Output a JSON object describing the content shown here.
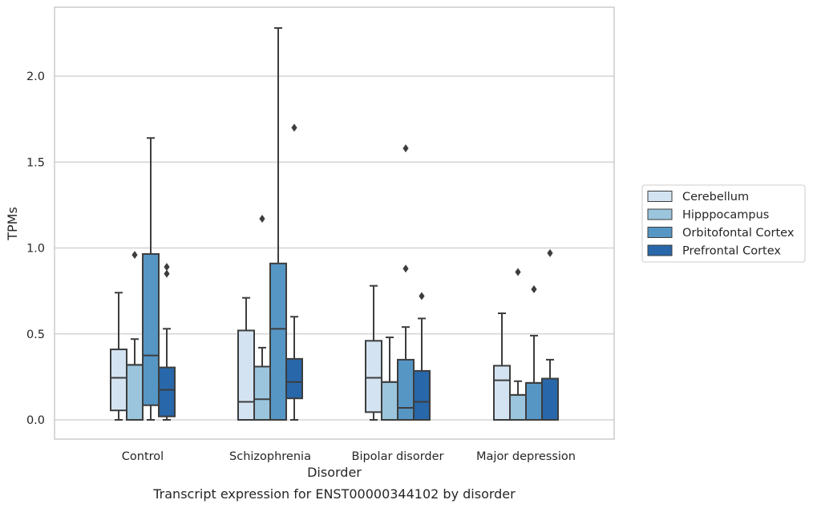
{
  "chart_data": {
    "type": "box",
    "title": "",
    "caption": "Transcript expression for ENST00000344102 by disorder",
    "xlabel": "Disorder",
    "ylabel": "TPMs",
    "ylim": [
      -0.11,
      2.41
    ],
    "yticks": [
      0.0,
      0.5,
      1.0,
      1.5,
      2.0
    ],
    "ytick_labels": [
      "0.0",
      "0.5",
      "1.0",
      "1.5",
      "2.0"
    ],
    "grid": "horizontal",
    "legend_position": "right",
    "categories": [
      "Control",
      "Schizophrenia",
      "Bipolar disorder",
      "Major depression"
    ],
    "series": [
      {
        "name": "Cerebellum",
        "color": "#d3e3f1",
        "boxes": [
          {
            "whisker_low": 0.0,
            "q1": 0.055,
            "median": 0.245,
            "q3": 0.41,
            "whisker_high": 0.74,
            "outliers": []
          },
          {
            "whisker_low": 0.0,
            "q1": 0.0,
            "median": 0.105,
            "q3": 0.52,
            "whisker_high": 0.71,
            "outliers": []
          },
          {
            "whisker_low": 0.0,
            "q1": 0.045,
            "median": 0.245,
            "q3": 0.46,
            "whisker_high": 0.78,
            "outliers": []
          },
          {
            "whisker_low": 0.0,
            "q1": 0.0,
            "median": 0.23,
            "q3": 0.315,
            "whisker_high": 0.62,
            "outliers": []
          }
        ]
      },
      {
        "name": "Hipppocampus",
        "color": "#9bc5dd",
        "boxes": [
          {
            "whisker_low": 0.0,
            "q1": 0.0,
            "median": 0.32,
            "q3": 0.32,
            "whisker_high": 0.47,
            "outliers": [
              0.96
            ]
          },
          {
            "whisker_low": 0.0,
            "q1": 0.0,
            "median": 0.12,
            "q3": 0.31,
            "whisker_high": 0.42,
            "outliers": [
              1.17
            ]
          },
          {
            "whisker_low": 0.0,
            "q1": 0.0,
            "median": 0.22,
            "q3": 0.22,
            "whisker_high": 0.48,
            "outliers": []
          },
          {
            "whisker_low": 0.0,
            "q1": 0.0,
            "median": 0.145,
            "q3": 0.145,
            "whisker_high": 0.225,
            "outliers": [
              0.86
            ]
          }
        ]
      },
      {
        "name": "Orbitofontal Cortex",
        "color": "#5696c5",
        "boxes": [
          {
            "whisker_low": 0.0,
            "q1": 0.085,
            "median": 0.375,
            "q3": 0.965,
            "whisker_high": 1.64,
            "outliers": []
          },
          {
            "whisker_low": 0.0,
            "q1": 0.0,
            "median": 0.53,
            "q3": 0.91,
            "whisker_high": 2.28,
            "outliers": []
          },
          {
            "whisker_low": 0.0,
            "q1": 0.0,
            "median": 0.07,
            "q3": 0.35,
            "whisker_high": 0.54,
            "outliers": [
              0.88,
              1.58
            ]
          },
          {
            "whisker_low": 0.0,
            "q1": 0.0,
            "median": 0.215,
            "q3": 0.215,
            "whisker_high": 0.49,
            "outliers": [
              0.76
            ]
          }
        ]
      },
      {
        "name": "Prefrontal Cortex",
        "color": "#2867a9",
        "boxes": [
          {
            "whisker_low": 0.0,
            "q1": 0.02,
            "median": 0.175,
            "q3": 0.305,
            "whisker_high": 0.53,
            "outliers": [
              0.85,
              0.89
            ]
          },
          {
            "whisker_low": 0.0,
            "q1": 0.125,
            "median": 0.22,
            "q3": 0.355,
            "whisker_high": 0.6,
            "outliers": [
              1.7
            ]
          },
          {
            "whisker_low": 0.0,
            "q1": 0.0,
            "median": 0.105,
            "q3": 0.285,
            "whisker_high": 0.59,
            "outliers": [
              0.72
            ]
          },
          {
            "whisker_low": 0.0,
            "q1": 0.0,
            "median": 0.24,
            "q3": 0.24,
            "whisker_high": 0.35,
            "outliers": [
              0.97
            ]
          }
        ]
      }
    ]
  }
}
